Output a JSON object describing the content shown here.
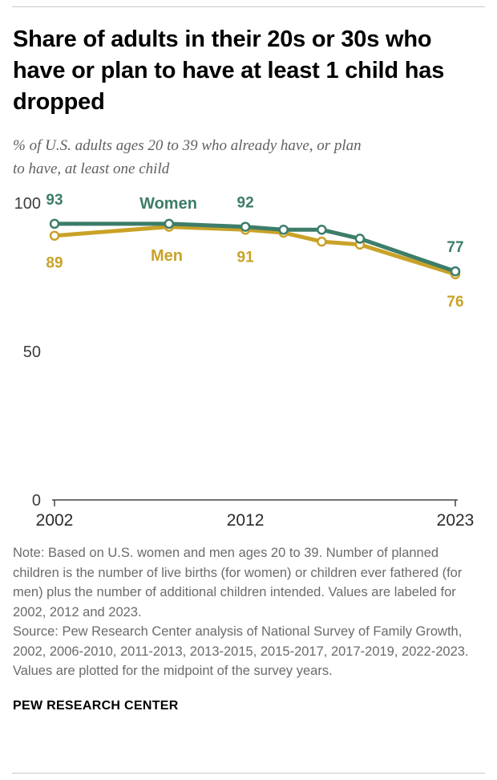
{
  "header": {
    "title_lines": [
      "Share of adults in their 20s or 30s who",
      "have or plan to have at least 1 child has",
      "dropped"
    ],
    "subtitle_lines": [
      "% of U.S. adults ages 20 to 39 who already have, or plan",
      "to have, at least one child"
    ]
  },
  "chart_data": {
    "type": "line",
    "x": [
      2002,
      2008,
      2012,
      2014,
      2016,
      2018,
      2023
    ],
    "series": [
      {
        "name": "Women",
        "color": "#3d7d6a",
        "values": [
          93,
          93,
          92,
          91,
          91,
          88,
          77
        ],
        "label_position": "above"
      },
      {
        "name": "Men",
        "color": "#c9a227",
        "values": [
          89,
          92,
          91,
          90,
          87,
          86,
          76
        ],
        "label_position": "below"
      }
    ],
    "labeled_years": [
      2002,
      2012,
      2023
    ],
    "ylim": [
      0,
      100
    ],
    "yticks": [
      0,
      50,
      100
    ],
    "xticks": [
      2002,
      2012,
      2023
    ],
    "grid": false,
    "legend_position": "direct-labels-on-lines",
    "marker": "open-circle"
  },
  "notes": {
    "note": "Note: Based on U.S. women and men ages 20 to 39. Number of planned children is the number of live births (for women) or children ever fathered (for men) plus the number of additional children intended. Values are labeled for 2002, 2012 and 2023.",
    "source": "Source: Pew Research Center analysis of National Survey of Family Growth, 2002, 2006-2010, 2011-2013, 2013-2015, 2015-2017, 2017-2019, 2022-2023. Values are plotted for the midpoint of the survey years."
  },
  "footer": {
    "brand": "PEW RESEARCH CENTER"
  }
}
